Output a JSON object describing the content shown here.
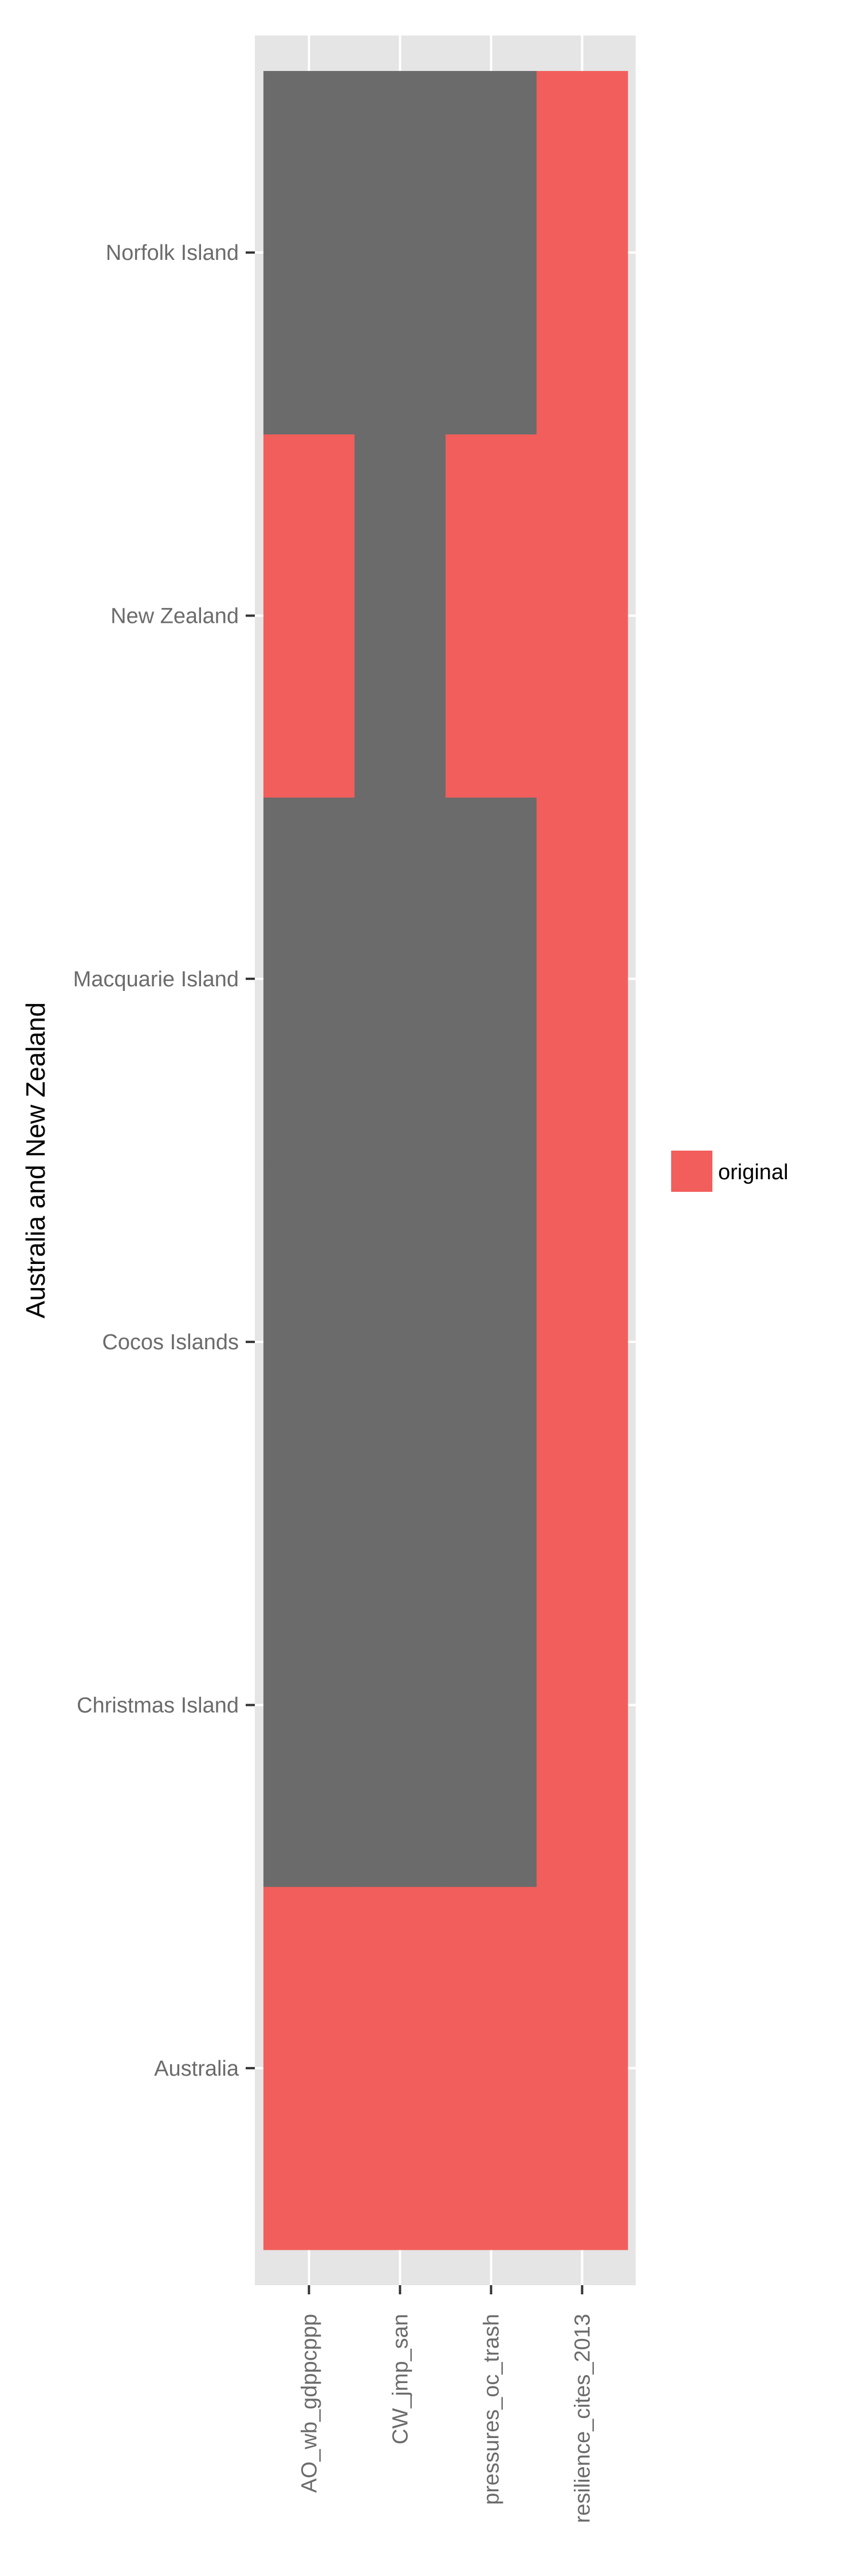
{
  "chart_data": {
    "type": "heatmap",
    "ylabel": "Australia and New Zealand",
    "xlabel": "",
    "x_categories": [
      "AO_wb_gdppcppp",
      "CW_jmp_san",
      "pressures_oc_trash",
      "resilience_cites_2013"
    ],
    "y_categories": [
      "Australia",
      "Christmas Island",
      "Cocos Islands",
      "Macquarie Island",
      "New Zealand",
      "Norfolk Island"
    ],
    "cells": [
      {
        "y": "Australia",
        "x": "AO_wb_gdppcppp",
        "value": "original"
      },
      {
        "y": "Australia",
        "x": "CW_jmp_san",
        "value": "original"
      },
      {
        "y": "Australia",
        "x": "pressures_oc_trash",
        "value": "original"
      },
      {
        "y": "Australia",
        "x": "resilience_cites_2013",
        "value": "original"
      },
      {
        "y": "Christmas Island",
        "x": "AO_wb_gdppcppp",
        "value": null
      },
      {
        "y": "Christmas Island",
        "x": "CW_jmp_san",
        "value": null
      },
      {
        "y": "Christmas Island",
        "x": "pressures_oc_trash",
        "value": null
      },
      {
        "y": "Christmas Island",
        "x": "resilience_cites_2013",
        "value": "original"
      },
      {
        "y": "Cocos Islands",
        "x": "AO_wb_gdppcppp",
        "value": null
      },
      {
        "y": "Cocos Islands",
        "x": "CW_jmp_san",
        "value": null
      },
      {
        "y": "Cocos Islands",
        "x": "pressures_oc_trash",
        "value": null
      },
      {
        "y": "Cocos Islands",
        "x": "resilience_cites_2013",
        "value": "original"
      },
      {
        "y": "Macquarie Island",
        "x": "AO_wb_gdppcppp",
        "value": null
      },
      {
        "y": "Macquarie Island",
        "x": "CW_jmp_san",
        "value": null
      },
      {
        "y": "Macquarie Island",
        "x": "pressures_oc_trash",
        "value": null
      },
      {
        "y": "Macquarie Island",
        "x": "resilience_cites_2013",
        "value": "original"
      },
      {
        "y": "New Zealand",
        "x": "AO_wb_gdppcppp",
        "value": "original"
      },
      {
        "y": "New Zealand",
        "x": "CW_jmp_san",
        "value": null
      },
      {
        "y": "New Zealand",
        "x": "pressures_oc_trash",
        "value": "original"
      },
      {
        "y": "New Zealand",
        "x": "resilience_cites_2013",
        "value": "original"
      },
      {
        "y": "Norfolk Island",
        "x": "AO_wb_gdppcppp",
        "value": null
      },
      {
        "y": "Norfolk Island",
        "x": "CW_jmp_san",
        "value": null
      },
      {
        "y": "Norfolk Island",
        "x": "pressures_oc_trash",
        "value": null
      },
      {
        "y": "Norfolk Island",
        "x": "resilience_cites_2013",
        "value": "original"
      }
    ],
    "legend": {
      "position": "right",
      "entries": [
        {
          "label": "original",
          "color": "#f25e5b"
        }
      ]
    },
    "grid": true,
    "colors": {
      "original": "#f25e5b",
      "missing": "#6b6b6b",
      "panel_background": "#e5e5e5",
      "gridline": "#ffffff"
    }
  }
}
